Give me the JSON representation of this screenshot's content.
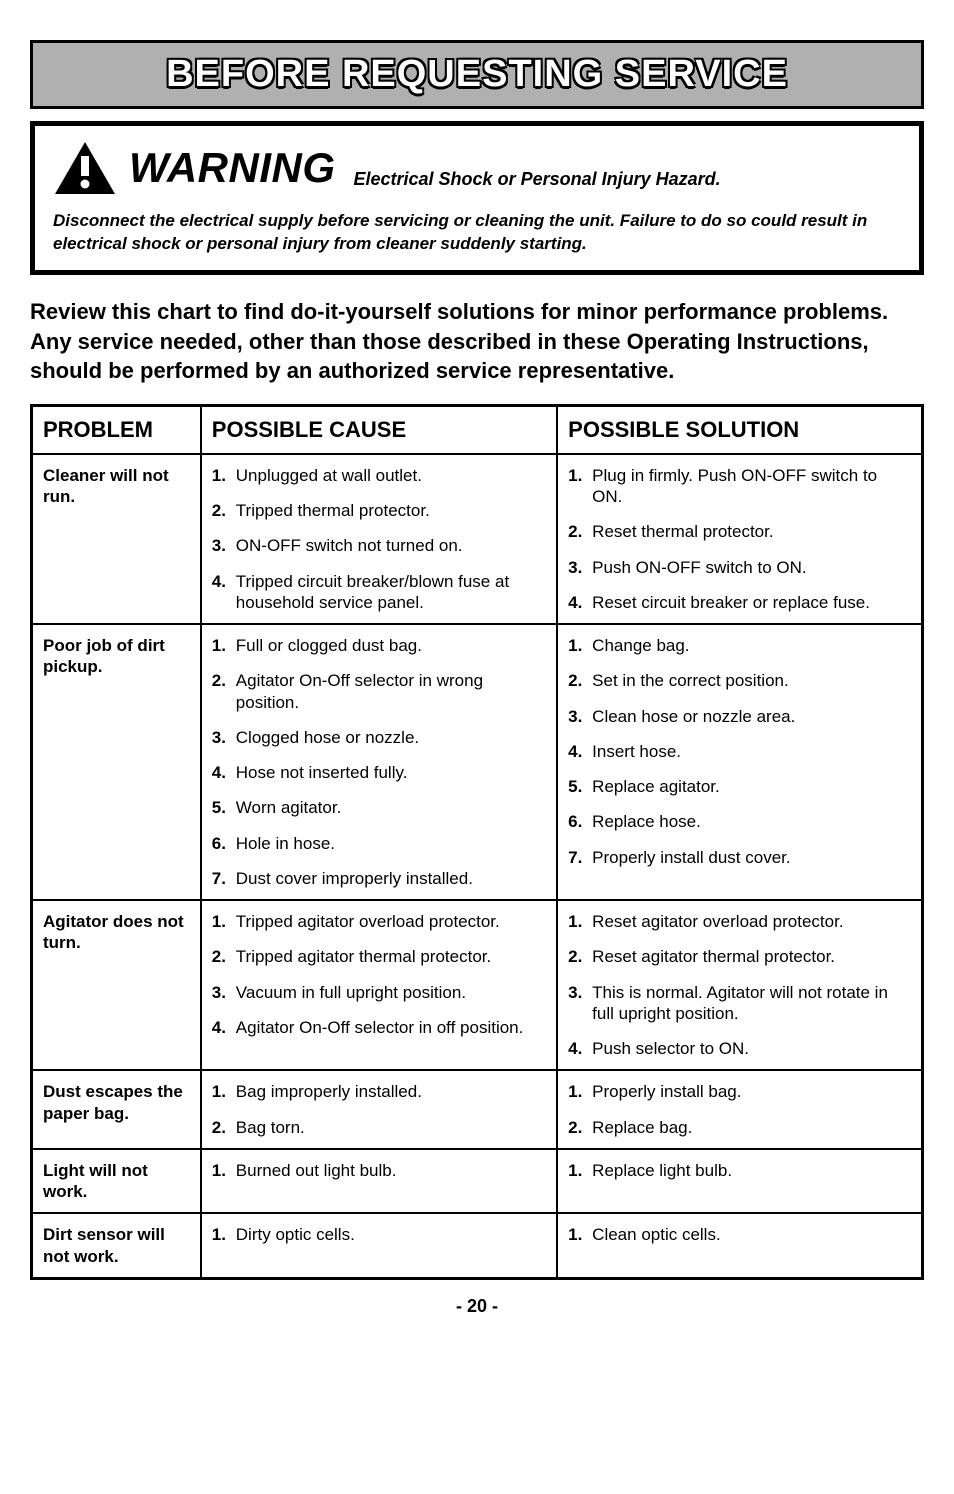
{
  "banner": "BEFORE REQUESTING SERVICE",
  "warning": {
    "title": "WARNING",
    "subtitle": "Electrical Shock or Personal Injury Hazard.",
    "body": "Disconnect the electrical supply before servicing or cleaning the unit. Failure to do so could result in electrical shock or personal injury from cleaner suddenly starting."
  },
  "intro": "Review this chart to find do-it-yourself solutions for minor performance problems. Any service needed, other than those described in these Operating Instructions, should be performed by an authorized service representative.",
  "headers": {
    "problem": "PROBLEM",
    "cause": "POSSIBLE CAUSE",
    "solution": "POSSIBLE SOLUTION"
  },
  "rows": [
    {
      "problem": "Cleaner will not run.",
      "causes": [
        "Unplugged at wall outlet.",
        "Tripped thermal protector.",
        "ON-OFF switch not turned on.",
        "Tripped circuit breaker/blown fuse at household service panel."
      ],
      "solutions": [
        "Plug in firmly. Push ON-OFF switch to ON.",
        "Reset thermal protector.",
        "Push ON-OFF switch to ON.",
        "Reset circuit breaker or replace fuse."
      ]
    },
    {
      "problem": "Poor job of dirt pickup.",
      "causes": [
        "Full or clogged dust bag.",
        "Agitator On-Off selector in wrong position.",
        "Clogged hose or nozzle.",
        "Hose not inserted fully.",
        "Worn agitator.",
        "Hole in hose.",
        "Dust cover improperly installed."
      ],
      "solutions": [
        "Change bag.",
        "Set in the correct position.",
        "Clean hose or nozzle area.",
        "Insert hose.",
        "Replace agitator.",
        "Replace hose.",
        "Properly install dust cover."
      ]
    },
    {
      "problem": "Agitator does not turn.",
      "causes": [
        "Tripped agitator overload protector.",
        "Tripped agitator thermal protector.",
        "Vacuum in full upright position.",
        "Agitator On-Off selector in off position."
      ],
      "solutions": [
        "Reset agitator overload protector.",
        "Reset agitator thermal protector.",
        "This is normal. Agitator will not rotate in full upright position.",
        "Push selector to ON."
      ]
    },
    {
      "problem": "Dust escapes the paper bag.",
      "causes": [
        "Bag improperly installed.",
        "Bag torn."
      ],
      "solutions": [
        "Properly install bag.",
        "Replace bag."
      ]
    },
    {
      "problem": "Light will not work.",
      "causes": [
        "Burned out light bulb."
      ],
      "solutions": [
        "Replace light bulb."
      ]
    },
    {
      "problem": "Dirt sensor will not work.",
      "causes": [
        "Dirty optic cells."
      ],
      "solutions": [
        "Clean optic cells."
      ]
    }
  ],
  "pageNumber": "- 20 -",
  "style": {
    "bannerBg": "#b0b0b0",
    "textColor": "#000000",
    "bannerTextFill": "#ffffff",
    "borderWidth": 3,
    "bodyBg": "#ffffff"
  }
}
